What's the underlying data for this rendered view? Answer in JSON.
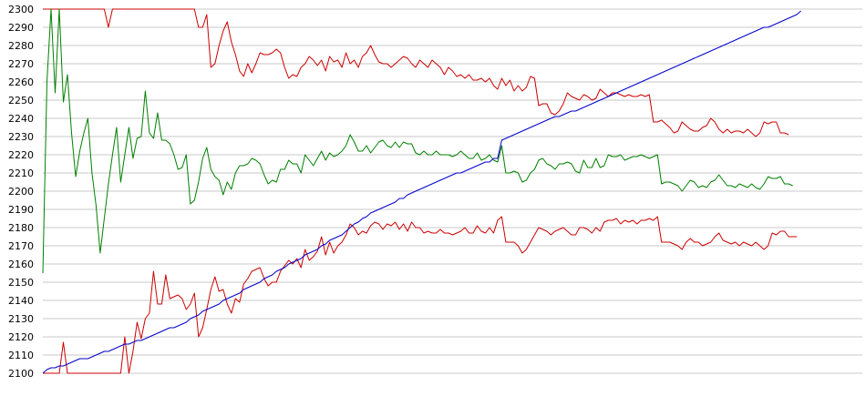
{
  "chart_data": {
    "type": "line",
    "title": "",
    "xlabel": "",
    "ylabel": "",
    "ylim": [
      2100,
      2300
    ],
    "y_ticks": [
      2100,
      2110,
      2120,
      2130,
      2140,
      2150,
      2160,
      2170,
      2180,
      2190,
      2200,
      2210,
      2220,
      2230,
      2240,
      2250,
      2260,
      2270,
      2280,
      2290,
      2300
    ],
    "x_range": [
      0,
      200
    ],
    "grid": "horizontal",
    "legend": "none",
    "series": [
      {
        "color": "#cc0000",
        "values": [
          2300,
          2300,
          2300,
          2300,
          2300,
          2300,
          2300,
          2300,
          2300,
          2300,
          2300,
          2300,
          2300,
          2300,
          2300,
          2300,
          2290,
          2300,
          2300,
          2300,
          2300,
          2300,
          2300,
          2300,
          2300,
          2300,
          2300,
          2300,
          2300,
          2300,
          2300,
          2300,
          2300,
          2300,
          2300,
          2300,
          2300,
          2300,
          2290,
          2290,
          2297,
          2268,
          2270,
          2280,
          2288,
          2293,
          2282,
          2275,
          2266,
          2263,
          2270,
          2265,
          2270,
          2276,
          2275,
          2275,
          2276,
          2278,
          2276,
          2268,
          2262,
          2264,
          2263,
          2268,
          2270,
          2274,
          2272,
          2269,
          2272,
          2266,
          2274,
          2271,
          2272,
          2268,
          2276,
          2270,
          2272,
          2268,
          2274,
          2276,
          2280,
          2275,
          2271,
          2270,
          2270,
          2268,
          2270,
          2272,
          2274,
          2273,
          2270,
          2268,
          2272,
          2270,
          2268,
          2272,
          2270,
          2268,
          2264,
          2268,
          2266,
          2263,
          2264,
          2262,
          2264,
          2261,
          2261,
          2262,
          2260,
          2262,
          2258,
          2256,
          2262,
          2258,
          2261,
          2255,
          2258,
          2255,
          2257,
          2263,
          2262,
          2247,
          2248,
          2248,
          2243,
          2242,
          2244,
          2248,
          2254,
          2252,
          2251,
          2250,
          2253,
          2252,
          2250,
          2251,
          2256,
          2254,
          2252,
          2254,
          2254,
          2253,
          2252,
          2253,
          2252,
          2252,
          2253,
          2252,
          2253,
          2238,
          2238,
          2239,
          2237,
          2235,
          2232,
          2233,
          2238,
          2236,
          2234,
          2233,
          2233,
          2235,
          2236,
          2240,
          2238,
          2234,
          2232,
          2234,
          2232,
          2233,
          2233,
          2232,
          2234,
          2232,
          2230,
          2232,
          2238,
          2237,
          2238,
          2238,
          2232,
          2232,
          2231
        ]
      },
      {
        "color": "#008000",
        "values": [
          2155,
          2260,
          2300,
          2254,
          2300,
          2249,
          2264,
          2232,
          2208,
          2222,
          2232,
          2240,
          2210,
          2192,
          2166,
          2185,
          2204,
          2220,
          2235,
          2205,
          2220,
          2235,
          2218,
          2229,
          2230,
          2255,
          2232,
          2229,
          2243,
          2228,
          2228,
          2226,
          2220,
          2212,
          2213,
          2220,
          2193,
          2195,
          2205,
          2218,
          2224,
          2212,
          2208,
          2206,
          2198,
          2205,
          2201,
          2210,
          2214,
          2214,
          2215,
          2218,
          2217,
          2215,
          2209,
          2204,
          2206,
          2205,
          2212,
          2212,
          2217,
          2215,
          2215,
          2210,
          2220,
          2217,
          2214,
          2218,
          2222,
          2217,
          2221,
          2219,
          2220,
          2222,
          2225,
          2231,
          2227,
          2222,
          2222,
          2225,
          2221,
          2224,
          2227,
          2228,
          2225,
          2224,
          2227,
          2224,
          2227,
          2226,
          2226,
          2221,
          2220,
          2222,
          2220,
          2220,
          2222,
          2220,
          2220,
          2220,
          2219,
          2220,
          2222,
          2220,
          2218,
          2218,
          2221,
          2217,
          2218,
          2220,
          2217,
          2216,
          2225,
          2210,
          2210,
          2211,
          2210,
          2205,
          2206,
          2210,
          2212,
          2217,
          2218,
          2215,
          2214,
          2212,
          2215,
          2215,
          2216,
          2215,
          2211,
          2210,
          2217,
          2213,
          2213,
          2218,
          2213,
          2214,
          2220,
          2219,
          2219,
          2220,
          2217,
          2218,
          2219,
          2219,
          2220,
          2219,
          2218,
          2219,
          2220,
          2204,
          2205,
          2205,
          2204,
          2203,
          2200,
          2203,
          2206,
          2205,
          2202,
          2203,
          2202,
          2205,
          2206,
          2209,
          2206,
          2203,
          2203,
          2202,
          2204,
          2203,
          2202,
          2204,
          2202,
          2201,
          2204,
          2208,
          2207,
          2207,
          2208,
          2204,
          2204,
          2203
        ]
      },
      {
        "color": "#cc0000",
        "values": [
          2100,
          2100,
          2100,
          2100,
          2100,
          2117,
          2100,
          2100,
          2100,
          2100,
          2100,
          2100,
          2100,
          2100,
          2100,
          2100,
          2100,
          2100,
          2100,
          2100,
          2120,
          2100,
          2112,
          2128,
          2119,
          2130,
          2133,
          2156,
          2138,
          2138,
          2154,
          2141,
          2142,
          2143,
          2141,
          2135,
          2138,
          2144,
          2120,
          2125,
          2135,
          2146,
          2153,
          2145,
          2146,
          2138,
          2133,
          2141,
          2139,
          2149,
          2152,
          2156,
          2157,
          2158,
          2152,
          2148,
          2150,
          2150,
          2156,
          2159,
          2162,
          2160,
          2163,
          2158,
          2168,
          2162,
          2164,
          2167,
          2175,
          2165,
          2172,
          2166,
          2170,
          2172,
          2176,
          2182,
          2180,
          2176,
          2178,
          2177,
          2181,
          2183,
          2182,
          2179,
          2182,
          2181,
          2183,
          2179,
          2182,
          2178,
          2183,
          2180,
          2180,
          2177,
          2178,
          2177,
          2177,
          2179,
          2177,
          2177,
          2176,
          2177,
          2178,
          2180,
          2177,
          2177,
          2181,
          2178,
          2177,
          2180,
          2177,
          2184,
          2186,
          2172,
          2172,
          2172,
          2170,
          2166,
          2168,
          2172,
          2176,
          2180,
          2179,
          2178,
          2176,
          2178,
          2179,
          2180,
          2178,
          2176,
          2176,
          2180,
          2180,
          2179,
          2177,
          2180,
          2178,
          2183,
          2184,
          2184,
          2185,
          2182,
          2184,
          2183,
          2184,
          2182,
          2184,
          2184,
          2185,
          2184,
          2186,
          2172,
          2172,
          2172,
          2171,
          2170,
          2168,
          2172,
          2174,
          2172,
          2172,
          2170,
          2171,
          2172,
          2175,
          2177,
          2173,
          2172,
          2171,
          2172,
          2170,
          2172,
          2171,
          2170,
          2172,
          2170,
          2168,
          2170,
          2177,
          2176,
          2178,
          2178,
          2175,
          2175,
          2175
        ]
      },
      {
        "color": "#0000cc",
        "values": [
          2100,
          2102,
          2103,
          2103,
          2104,
          2104,
          2105,
          2106,
          2107,
          2108,
          2108,
          2108,
          2109,
          2110,
          2111,
          2112,
          2112,
          2113,
          2114,
          2115,
          2116,
          2116,
          2117,
          2118,
          2118,
          2119,
          2120,
          2121,
          2122,
          2123,
          2124,
          2125,
          2125,
          2126,
          2127,
          2128,
          2130,
          2131,
          2132,
          2134,
          2135,
          2136,
          2137,
          2138,
          2140,
          2141,
          2142,
          2143,
          2144,
          2146,
          2147,
          2148,
          2149,
          2150,
          2152,
          2153,
          2154,
          2156,
          2157,
          2158,
          2160,
          2161,
          2162,
          2163,
          2165,
          2166,
          2167,
          2168,
          2170,
          2171,
          2173,
          2174,
          2175,
          2176,
          2178,
          2180,
          2182,
          2183,
          2185,
          2186,
          2188,
          2189,
          2190,
          2191,
          2192,
          2193,
          2194,
          2196,
          2196,
          2198,
          2199,
          2200,
          2201,
          2202,
          2203,
          2204,
          2205,
          2206,
          2207,
          2208,
          2209,
          2210,
          2210,
          2211,
          2212,
          2213,
          2214,
          2215,
          2216,
          2216,
          2218,
          2218,
          2228,
          2229,
          2230,
          2231,
          2232,
          2233,
          2234,
          2235,
          2236,
          2237,
          2238,
          2239,
          2240,
          2241,
          2241,
          2242,
          2243,
          2244,
          2244,
          2245,
          2246,
          2247,
          2248,
          2249,
          2250,
          2251,
          2252,
          2253,
          2254,
          2255,
          2256,
          2257,
          2258,
          2259,
          2260,
          2261,
          2262,
          2263,
          2264,
          2265,
          2266,
          2267,
          2268,
          2269,
          2270,
          2271,
          2272,
          2273,
          2274,
          2275,
          2276,
          2277,
          2278,
          2279,
          2280,
          2281,
          2282,
          2283,
          2284,
          2285,
          2286,
          2287,
          2288,
          2289,
          2290,
          2290,
          2291,
          2292,
          2293,
          2294,
          2295,
          2296,
          2297,
          2299
        ]
      }
    ]
  }
}
